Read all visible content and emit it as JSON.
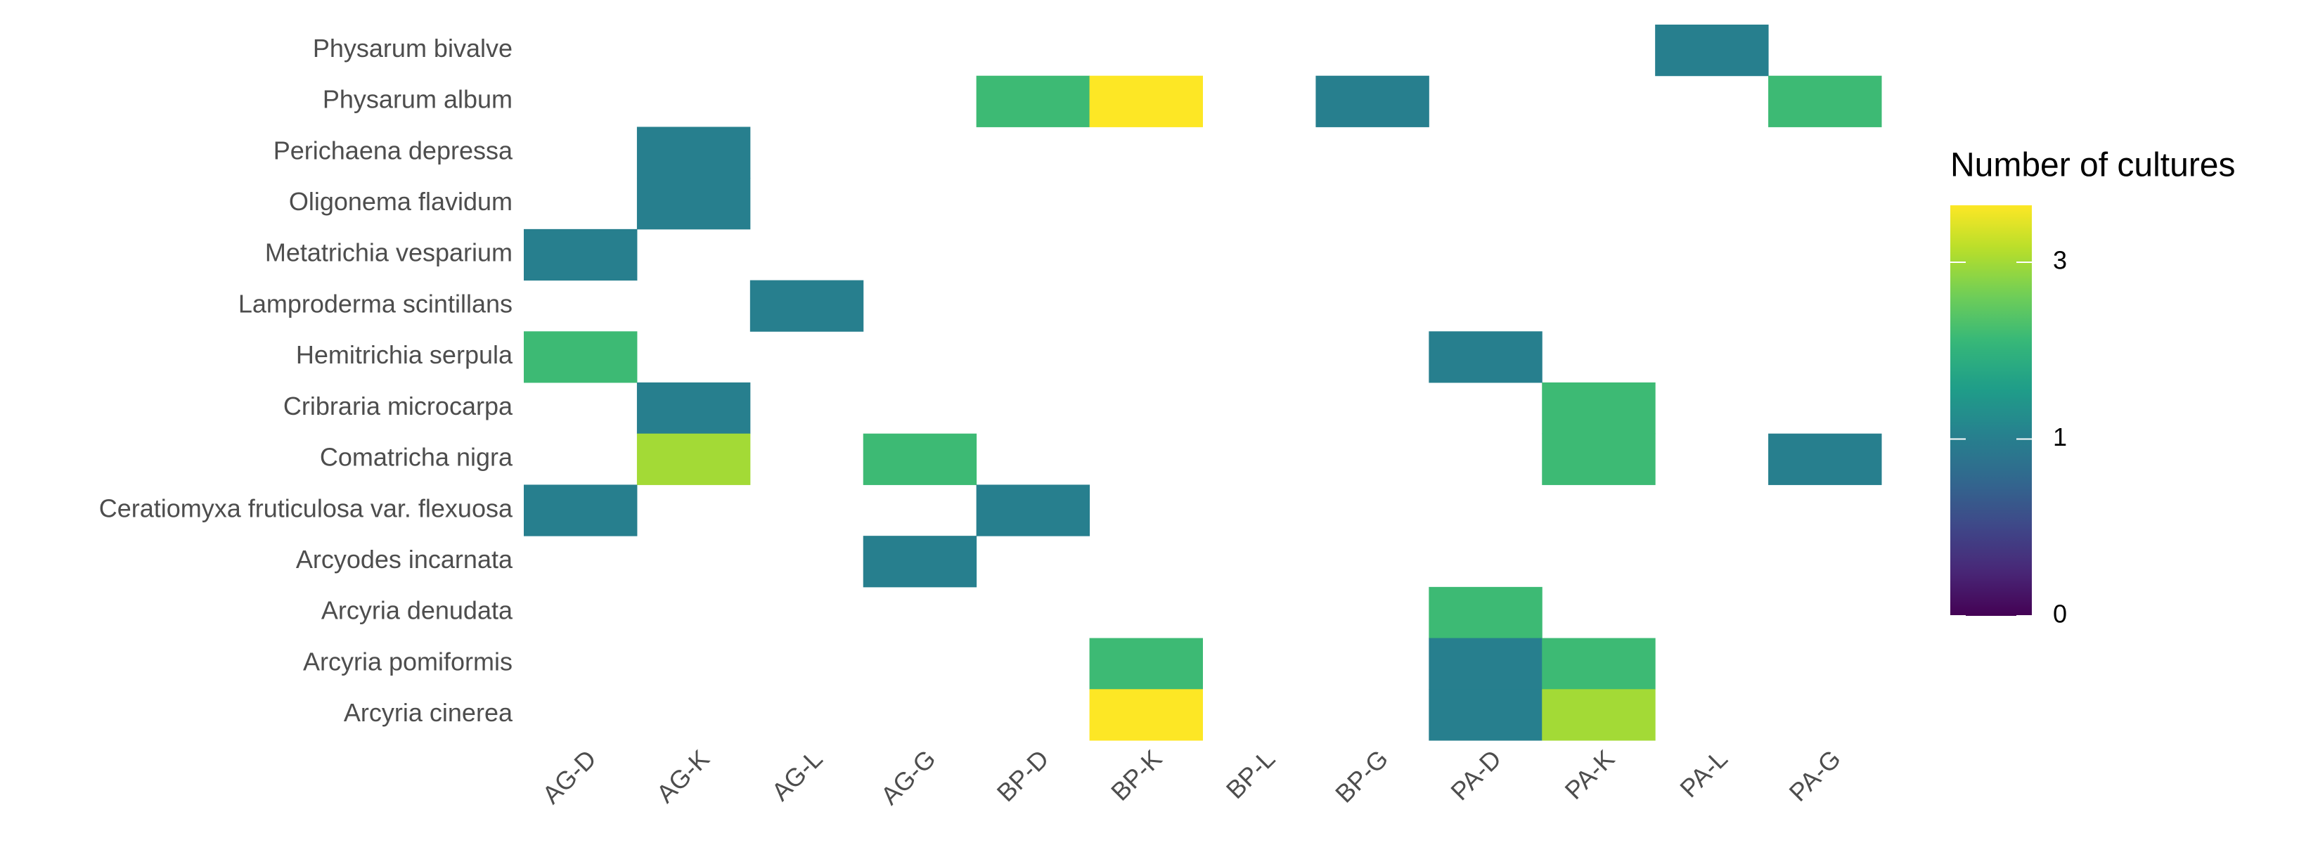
{
  "chart_data": {
    "type": "heatmap",
    "legend_title": "Number of cultures",
    "colormap": "viridis",
    "color_scale": "log1p",
    "clim": [
      0,
      4
    ],
    "cticks": [
      0,
      1,
      3
    ],
    "x": [
      "AG-D",
      "AG-K",
      "AG-L",
      "AG-G",
      "BP-D",
      "BP-K",
      "BP-L",
      "BP-G",
      "PA-D",
      "PA-K",
      "PA-L",
      "PA-G"
    ],
    "y": [
      "Physarum bivalve",
      "Physarum album",
      "Perichaena depressa",
      "Oligonema flavidum",
      "Metatrichia vesparium",
      "Lamproderma scintillans",
      "Hemitrichia serpula",
      "Cribraria microcarpa",
      "Comatricha nigra",
      "Ceratiomyxa fruticulosa var. flexuosa",
      "Arcyodes incarnata",
      "Arcyria denudata",
      "Arcyria pomiformis",
      "Arcyria cinerea"
    ],
    "values": [
      [
        null,
        null,
        null,
        null,
        null,
        null,
        null,
        null,
        null,
        null,
        1,
        null
      ],
      [
        null,
        null,
        null,
        null,
        2,
        4,
        null,
        1,
        null,
        null,
        null,
        2
      ],
      [
        null,
        1,
        null,
        null,
        null,
        null,
        null,
        null,
        null,
        null,
        null,
        null
      ],
      [
        null,
        1,
        null,
        null,
        null,
        null,
        null,
        null,
        null,
        null,
        null,
        null
      ],
      [
        1,
        null,
        null,
        null,
        null,
        null,
        null,
        null,
        null,
        null,
        null,
        null
      ],
      [
        null,
        null,
        1,
        null,
        null,
        null,
        null,
        null,
        null,
        null,
        null,
        null
      ],
      [
        2,
        null,
        null,
        null,
        null,
        null,
        null,
        null,
        1,
        null,
        null,
        null
      ],
      [
        null,
        1,
        null,
        null,
        null,
        null,
        null,
        null,
        null,
        2,
        null,
        null
      ],
      [
        null,
        3,
        null,
        2,
        null,
        null,
        null,
        null,
        null,
        2,
        null,
        1
      ],
      [
        1,
        null,
        null,
        null,
        1,
        null,
        null,
        null,
        null,
        null,
        null,
        null
      ],
      [
        null,
        null,
        null,
        1,
        null,
        null,
        null,
        null,
        null,
        null,
        null,
        null
      ],
      [
        null,
        null,
        null,
        null,
        null,
        null,
        null,
        null,
        2,
        null,
        null,
        null
      ],
      [
        null,
        null,
        null,
        null,
        null,
        2,
        null,
        null,
        1,
        2,
        null,
        null
      ],
      [
        null,
        null,
        null,
        null,
        null,
        4,
        null,
        null,
        1,
        3,
        null,
        null
      ]
    ]
  }
}
